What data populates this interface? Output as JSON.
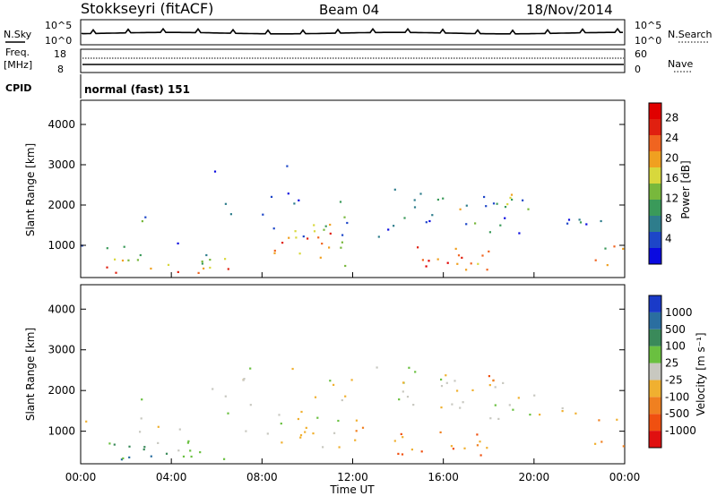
{
  "header": {
    "station": "Stokkseyri (fitACF)",
    "beam": "Beam 04",
    "date": "18/Nov/2014"
  },
  "top_panel": {
    "left_label": "N.Sky",
    "left_ticks": [
      "10^5",
      "10^0"
    ],
    "right_ticks": [
      "10^5",
      "10^0"
    ],
    "right_label": "N.Search"
  },
  "freq_panel": {
    "left_label_1": "Freq.",
    "left_label_2": "[MHz]",
    "left_ticks": [
      "18",
      "8"
    ],
    "right_ticks": [
      "60",
      "0"
    ],
    "right_label": "Nave",
    "cpid_label": "CPID",
    "cpid_value": "normal (fast) 151"
  },
  "chart_data": [
    {
      "type": "heatmap",
      "name": "Power",
      "ylabel": "Slant Range [km]",
      "yticks": [
        "1000",
        "2000",
        "3000",
        "4000"
      ],
      "ylim": [
        200,
        4600
      ],
      "xlim": [
        0,
        24
      ],
      "colorbar": {
        "label": "Power [dB]",
        "ticks": [
          "4",
          "8",
          "12",
          "16",
          "20",
          "24",
          "28"
        ],
        "colors": [
          "#0a0ae0",
          "#1d46c8",
          "#2e7d8c",
          "#3a9a5a",
          "#78b83c",
          "#d8d83c",
          "#f0a020",
          "#f06420",
          "#e02010",
          "#e00000"
        ]
      }
    },
    {
      "type": "heatmap",
      "name": "Velocity",
      "ylabel": "Slant Range [km]",
      "yticks": [
        "1000",
        "2000",
        "3000",
        "4000"
      ],
      "ylim": [
        200,
        4600
      ],
      "xlim": [
        0,
        24
      ],
      "xlabel": "Time UT",
      "xticks": [
        "00:00",
        "04:00",
        "08:00",
        "12:00",
        "16:00",
        "20:00",
        "00:00"
      ],
      "colorbar": {
        "label": "Velocity [m s⁻¹]",
        "ticks": [
          "1000",
          "500",
          "100",
          "25",
          "-25",
          "-100",
          "-500",
          "-1000"
        ],
        "colors": [
          "#1a3ac8",
          "#2a6ea0",
          "#3a8a5a",
          "#6ac040",
          "#c8c8c0",
          "#f0b030",
          "#f08020",
          "#f05010",
          "#e01010"
        ]
      }
    }
  ]
}
